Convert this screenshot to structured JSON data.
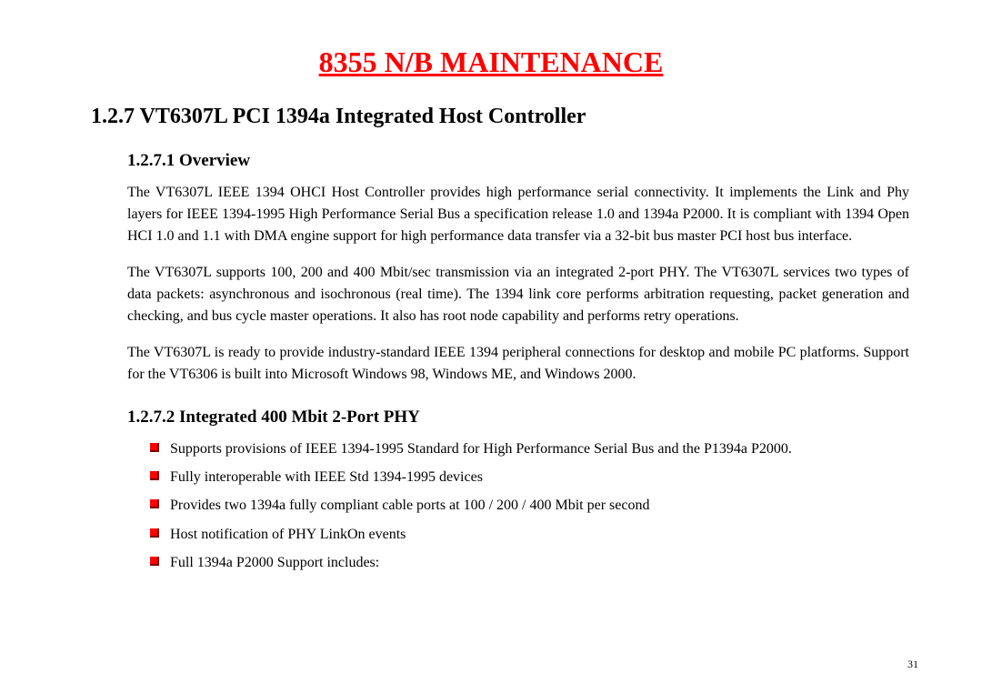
{
  "doc_title": "8355 N/B MAINTENANCE",
  "section": {
    "number": "1.2.7",
    "title": "VT6307L PCI 1394a Integrated Host Controller"
  },
  "subsections": [
    {
      "number": "1.2.7.1",
      "title": "Overview",
      "paragraphs": [
        "The VT6307L IEEE 1394 OHCI Host Controller provides high performance serial connectivity. It implements the Link and Phy layers for IEEE 1394-1995 High Performance Serial Bus a specification release 1.0 and 1394a P2000. It is compliant with 1394 Open HCI 1.0 and 1.1 with DMA engine support for high performance data transfer via a 32-bit bus master PCI host bus interface.",
        "The VT6307L supports 100, 200 and 400 Mbit/sec transmission via an integrated 2-port PHY. The VT6307L services two types of data packets: asynchronous and isochronous (real time). The 1394 link core performs arbitration requesting, packet generation and checking, and bus cycle master operations. It also has root node capability and performs retry operations.",
        "The VT6307L is ready to provide industry-standard IEEE 1394 peripheral connections for desktop and mobile PC platforms. Support for the VT6306 is built into Microsoft Windows 98, Windows ME, and Windows 2000."
      ]
    },
    {
      "number": "1.2.7.2",
      "title": "Integrated 400 Mbit 2-Port PHY",
      "bullets": [
        "Supports provisions of IEEE 1394-1995 Standard for High Performance Serial Bus and the P1394a P2000.",
        "Fully interoperable with IEEE Std 1394-1995 devices",
        "Provides two 1394a fully compliant cable ports at 100 / 200 / 400 Mbit per second",
        "Host notification of PHY LinkOn events",
        "Full 1394a P2000 Support includes:"
      ]
    }
  ],
  "page_number": "31",
  "colors": {
    "title_color": "#ff0000",
    "bullet_color": "#ff0000",
    "text_color": "#000000",
    "background": "#ffffff"
  },
  "typography": {
    "title_fontsize": 32,
    "section_fontsize": 24,
    "subsection_fontsize": 19,
    "body_fontsize": 16,
    "pagenum_fontsize": 12,
    "font_family": "Times New Roman"
  }
}
